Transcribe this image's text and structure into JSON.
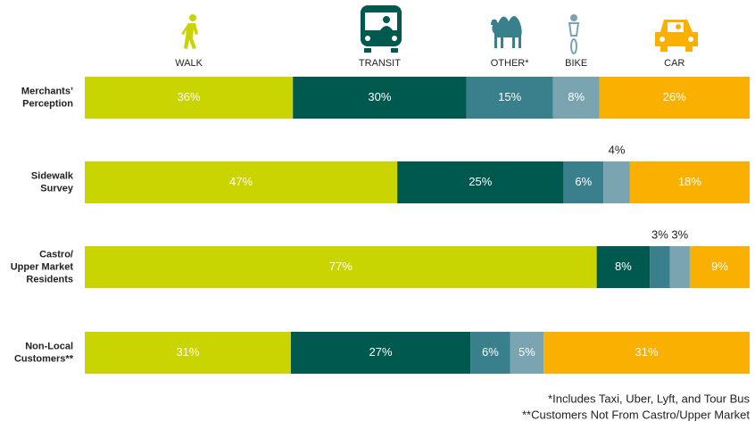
{
  "chart_data": {
    "type": "bar_stacked_horizontal_percent",
    "categories": [
      [
        "Merchants’",
        "Perception"
      ],
      [
        "Sidewalk",
        "Survey"
      ],
      [
        "Castro/",
        "Upper Market",
        "Residents"
      ],
      [
        "Non-Local",
        "Customers**"
      ]
    ],
    "series": [
      {
        "name": "WALK",
        "color": "#c9d400",
        "values": [
          36,
          47,
          77,
          31
        ],
        "value_labels": [
          "36%",
          "47%",
          "77%",
          "31%"
        ]
      },
      {
        "name": "TRANSIT",
        "color": "#00594f",
        "values": [
          30,
          25,
          8,
          27
        ],
        "value_labels": [
          "30%",
          "25%",
          "8%",
          "27%"
        ]
      },
      {
        "name": "OTHER*",
        "color": "#3a7f8c",
        "values": [
          15,
          6,
          3,
          6
        ],
        "value_labels": [
          "15%",
          "6%",
          "3%",
          "6%"
        ]
      },
      {
        "name": "BIKE",
        "color": "#7aa5b0",
        "values": [
          8,
          4,
          3,
          5
        ],
        "value_labels": [
          "8%",
          "4%",
          "3%",
          "5%"
        ]
      },
      {
        "name": "CAR",
        "color": "#f9b000",
        "values": [
          26,
          18,
          9,
          31
        ],
        "value_labels": [
          "26%",
          "18%",
          "9%",
          "31%"
        ]
      }
    ],
    "notes": [
      "*Includes Taxi, Uber, Lyft, and Tour Bus",
      "**Customers Not From Castro/Upper Market"
    ]
  }
}
